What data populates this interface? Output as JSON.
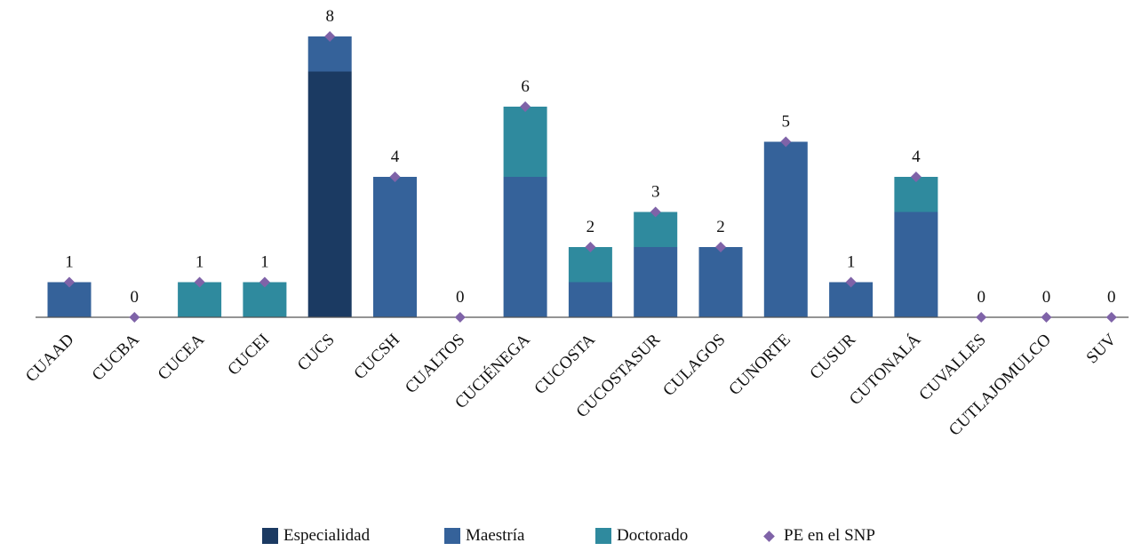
{
  "chart_data": {
    "type": "bar",
    "stacked": true,
    "categories": [
      "CUAAD",
      "CUCBA",
      "CUCEA",
      "CUCEI",
      "CUCS",
      "CUCSH",
      "CUALTOS",
      "CUCIÉNEGA",
      "CUCOSTA",
      "CUCOSTASUR",
      "CULAGOS",
      "CUNORTE",
      "CUSUR",
      "CUTONALÁ",
      "CUVALLES",
      "CUTLAJOMULCO",
      "SUV"
    ],
    "series": [
      {
        "name": "Especialidad",
        "color": "#1b3a62",
        "values": [
          0,
          0,
          0,
          0,
          7,
          0,
          0,
          0,
          0,
          0,
          0,
          0,
          0,
          0,
          0,
          0,
          0
        ]
      },
      {
        "name": "Maestría",
        "color": "#35629a",
        "values": [
          1,
          0,
          0,
          0,
          1,
          4,
          0,
          4,
          1,
          2,
          2,
          5,
          1,
          3,
          0,
          0,
          0
        ]
      },
      {
        "name": "Doctorado",
        "color": "#2f8a9e",
        "values": [
          0,
          0,
          1,
          1,
          0,
          0,
          0,
          2,
          1,
          1,
          0,
          0,
          0,
          1,
          0,
          0,
          0
        ]
      }
    ],
    "markers": {
      "name": "PE en el SNP",
      "color": "#7f63a8",
      "values": [
        1,
        0,
        1,
        1,
        8,
        4,
        0,
        6,
        2,
        3,
        2,
        5,
        1,
        4,
        0,
        0,
        0
      ]
    },
    "data_labels": [
      "1",
      "0",
      "1",
      "1",
      "8",
      "4",
      "0",
      "6",
      "2",
      "3",
      "2",
      "5",
      "1",
      "4",
      "0",
      "0",
      "0"
    ],
    "title": "",
    "xlabel": "",
    "ylabel": "",
    "ylim": [
      0,
      8
    ],
    "grid": false,
    "legend": "bottom"
  }
}
